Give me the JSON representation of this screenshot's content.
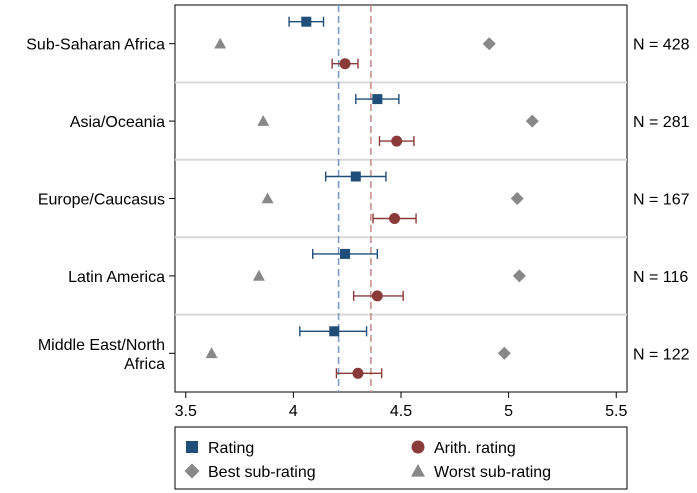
{
  "chart_data": {
    "type": "scatter",
    "title": "",
    "xlabel": "",
    "ylabel": "",
    "xlim": [
      3.45,
      5.55
    ],
    "xticks": [
      3.5,
      4,
      4.5,
      5,
      5.5
    ],
    "xtick_labels": [
      "3.5",
      "4",
      "4.5",
      "5",
      "5.5"
    ],
    "grid": "horizontal separators between groups",
    "reference_lines": [
      {
        "x": 4.21,
        "color": "#7a9cc6",
        "style": "dashed"
      },
      {
        "x": 4.36,
        "color": "#c9918f",
        "style": "dashed"
      }
    ],
    "categories": [
      {
        "label_lines": [
          "Sub-Saharan Africa"
        ],
        "n_label": "N = 428"
      },
      {
        "label_lines": [
          "Asia/Oceania"
        ],
        "n_label": "N = 281"
      },
      {
        "label_lines": [
          "Europe/Caucasus"
        ],
        "n_label": "N = 167"
      },
      {
        "label_lines": [
          "Latin America"
        ],
        "n_label": "N = 116"
      },
      {
        "label_lines": [
          "Middle East/North",
          "Africa"
        ],
        "n_label": "N = 122"
      }
    ],
    "series": [
      {
        "name": "Rating",
        "marker": "square",
        "color": "#1f4e79",
        "values": [
          4.06,
          4.39,
          4.29,
          4.24,
          4.19
        ],
        "ci_low": [
          3.98,
          4.29,
          4.15,
          4.09,
          4.03
        ],
        "ci_high": [
          4.14,
          4.49,
          4.43,
          4.39,
          4.34
        ]
      },
      {
        "name": "Arith. rating",
        "marker": "circle",
        "color": "#8b3a3a",
        "values": [
          4.24,
          4.48,
          4.47,
          4.39,
          4.3
        ],
        "ci_low": [
          4.18,
          4.4,
          4.37,
          4.28,
          4.2
        ],
        "ci_high": [
          4.3,
          4.56,
          4.57,
          4.51,
          4.41
        ]
      },
      {
        "name": "Best sub-rating",
        "marker": "diamond",
        "color": "#888888",
        "values": [
          4.91,
          5.11,
          5.04,
          5.05,
          4.98
        ]
      },
      {
        "name": "Worst sub-rating",
        "marker": "triangle",
        "color": "#888888",
        "values": [
          3.66,
          3.86,
          3.88,
          3.84,
          3.62
        ]
      }
    ],
    "legend": {
      "placement": "bottom",
      "items": [
        "Rating",
        "Arith. rating",
        "Best sub-rating",
        "Worst sub-rating"
      ]
    }
  }
}
